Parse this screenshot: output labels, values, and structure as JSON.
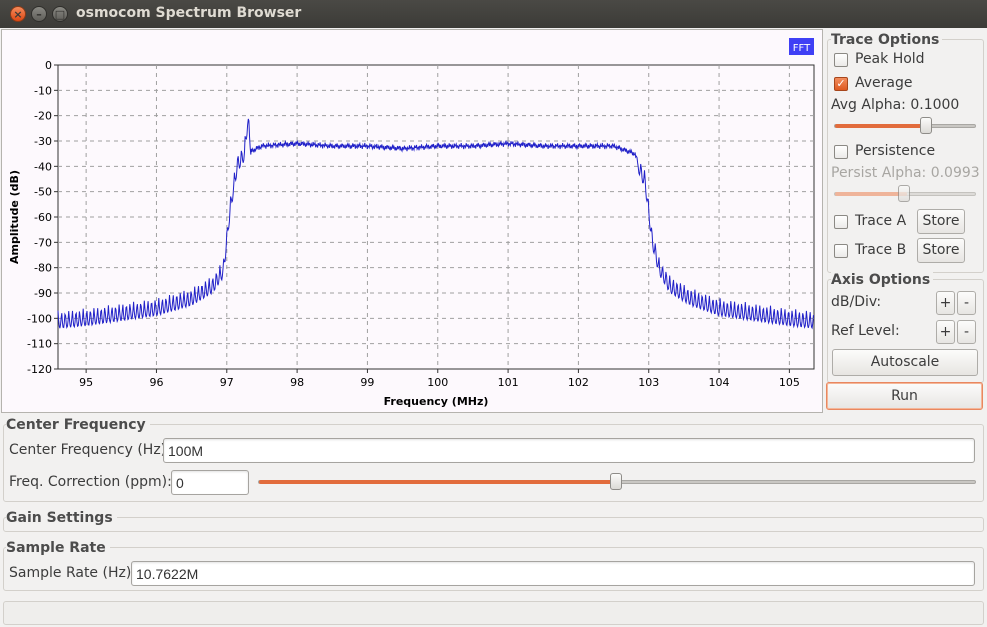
{
  "window": {
    "title": "osmocom Spectrum Browser"
  },
  "plot": {
    "badge": "FFT",
    "colors": {
      "trace": "#2121c8",
      "badge": "#3f3ff5",
      "background": "#fdf9fd",
      "grid": "#a0a0a0"
    }
  },
  "chart_data": {
    "type": "line",
    "xlabel": "Frequency (MHz)",
    "ylabel": "Amplitude (dB)",
    "xlim": [
      94.6,
      105.35
    ],
    "ylim": [
      -120,
      0
    ],
    "x_ticks": [
      "95",
      "96",
      "97",
      "98",
      "99",
      "100",
      "101",
      "102",
      "103",
      "104",
      "105"
    ],
    "y_ticks": [
      "0",
      "-10",
      "-20",
      "-30",
      "-40",
      "-50",
      "-60",
      "-70",
      "-80",
      "-90",
      "-100",
      "-110",
      "-120"
    ],
    "grid": true,
    "series": [
      {
        "x": [
          94.6,
          95.0,
          95.5,
          96.0,
          96.5,
          96.8,
          96.95,
          97.05,
          97.15,
          97.25,
          97.3,
          97.35,
          97.5,
          98.0,
          98.5,
          99.0,
          99.5,
          100.0,
          100.5,
          101.0,
          101.5,
          102.0,
          102.5,
          102.8,
          102.95,
          103.05,
          103.15,
          103.3,
          103.6,
          104.0,
          104.5,
          105.0,
          105.35
        ],
        "y": [
          -100,
          -99,
          -97,
          -95,
          -91,
          -86,
          -80,
          -55,
          -38,
          -34,
          -20,
          -34,
          -32,
          -31,
          -32,
          -32,
          -33,
          -32,
          -32,
          -31,
          -32,
          -32,
          -32,
          -35,
          -45,
          -68,
          -79,
          -86,
          -91,
          -95,
          -97,
          -99,
          -100
        ]
      }
    ]
  },
  "trace_options": {
    "title": "Trace Options",
    "peak_hold": {
      "label": "Peak Hold",
      "checked": false
    },
    "average": {
      "label": "Average",
      "checked": true
    },
    "avg_alpha": {
      "label": "Avg Alpha: 0.1000",
      "value": 0.1,
      "slider_fraction": 0.65
    },
    "persistence": {
      "label": "Persistence",
      "checked": false
    },
    "persist_alpha": {
      "label": "Persist Alpha: 0.0993",
      "value": 0.0993,
      "slider_fraction": 0.45
    },
    "trace_a": {
      "label": "Trace A",
      "checked": false,
      "store": "Store"
    },
    "trace_b": {
      "label": "Trace B",
      "checked": false,
      "store": "Store"
    }
  },
  "axis_options": {
    "title": "Axis Options",
    "db_div": {
      "label": "dB/Div:",
      "plus": "+",
      "minus": "-"
    },
    "ref_level": {
      "label": "Ref Level:",
      "plus": "+",
      "minus": "-"
    },
    "autoscale": "Autoscale",
    "run": "Run"
  },
  "center_frequency": {
    "title": "Center Frequency",
    "freq_label": "Center Frequency (Hz):",
    "freq_value": "100M",
    "corr_label": "Freq. Correction (ppm):",
    "corr_value": "0",
    "corr_slider_fraction": 0.5
  },
  "gain_settings": {
    "title": "Gain Settings"
  },
  "sample_rate": {
    "title": "Sample Rate",
    "label": "Sample Rate (Hz):",
    "value": "10.7622M"
  }
}
